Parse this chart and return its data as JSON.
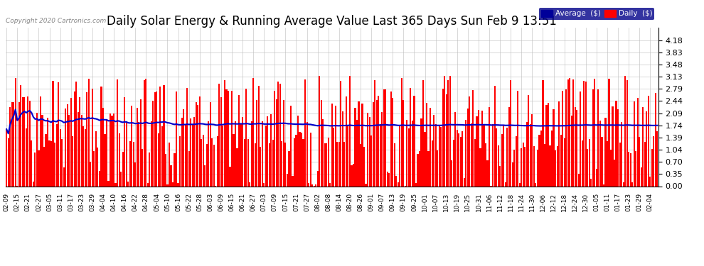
{
  "title": "Daily Solar Energy & Running Average Value Last 365 Days Sun Feb 9 13:51",
  "copyright": "Copyright 2020 Cartronics.com",
  "bar_color": "#ff0000",
  "avg_line_color": "#0000cc",
  "background_color": "#ffffff",
  "grid_color": "#bbbbbb",
  "ylim": [
    0.0,
    4.53
  ],
  "yticks": [
    0.0,
    0.35,
    0.7,
    1.04,
    1.39,
    1.74,
    2.09,
    2.44,
    2.79,
    3.13,
    3.48,
    3.83,
    4.18
  ],
  "n_days": 365,
  "target_avg": 1.74,
  "legend_avg_color": "#000099",
  "legend_daily_color": "#ff0000",
  "title_fontsize": 12,
  "tick_fontsize": 8,
  "xlabel_fontsize": 6.5,
  "x_tick_labels": [
    "02-09",
    "02-15",
    "02-21",
    "02-27",
    "03-05",
    "03-11",
    "03-17",
    "03-23",
    "03-29",
    "04-04",
    "04-10",
    "04-16",
    "04-22",
    "04-28",
    "05-04",
    "05-10",
    "05-16",
    "05-22",
    "05-28",
    "06-03",
    "06-09",
    "06-15",
    "06-21",
    "06-27",
    "07-03",
    "07-09",
    "07-15",
    "07-21",
    "07-27",
    "08-02",
    "08-08",
    "08-14",
    "08-20",
    "08-26",
    "09-01",
    "09-07",
    "09-13",
    "09-19",
    "09-25",
    "10-01",
    "10-07",
    "10-13",
    "10-19",
    "10-25",
    "10-31",
    "11-06",
    "11-12",
    "11-18",
    "11-24",
    "11-30",
    "12-06",
    "12-12",
    "12-18",
    "12-24",
    "12-30",
    "01-05",
    "01-11",
    "01-17",
    "01-23",
    "01-29",
    "02-04"
  ]
}
